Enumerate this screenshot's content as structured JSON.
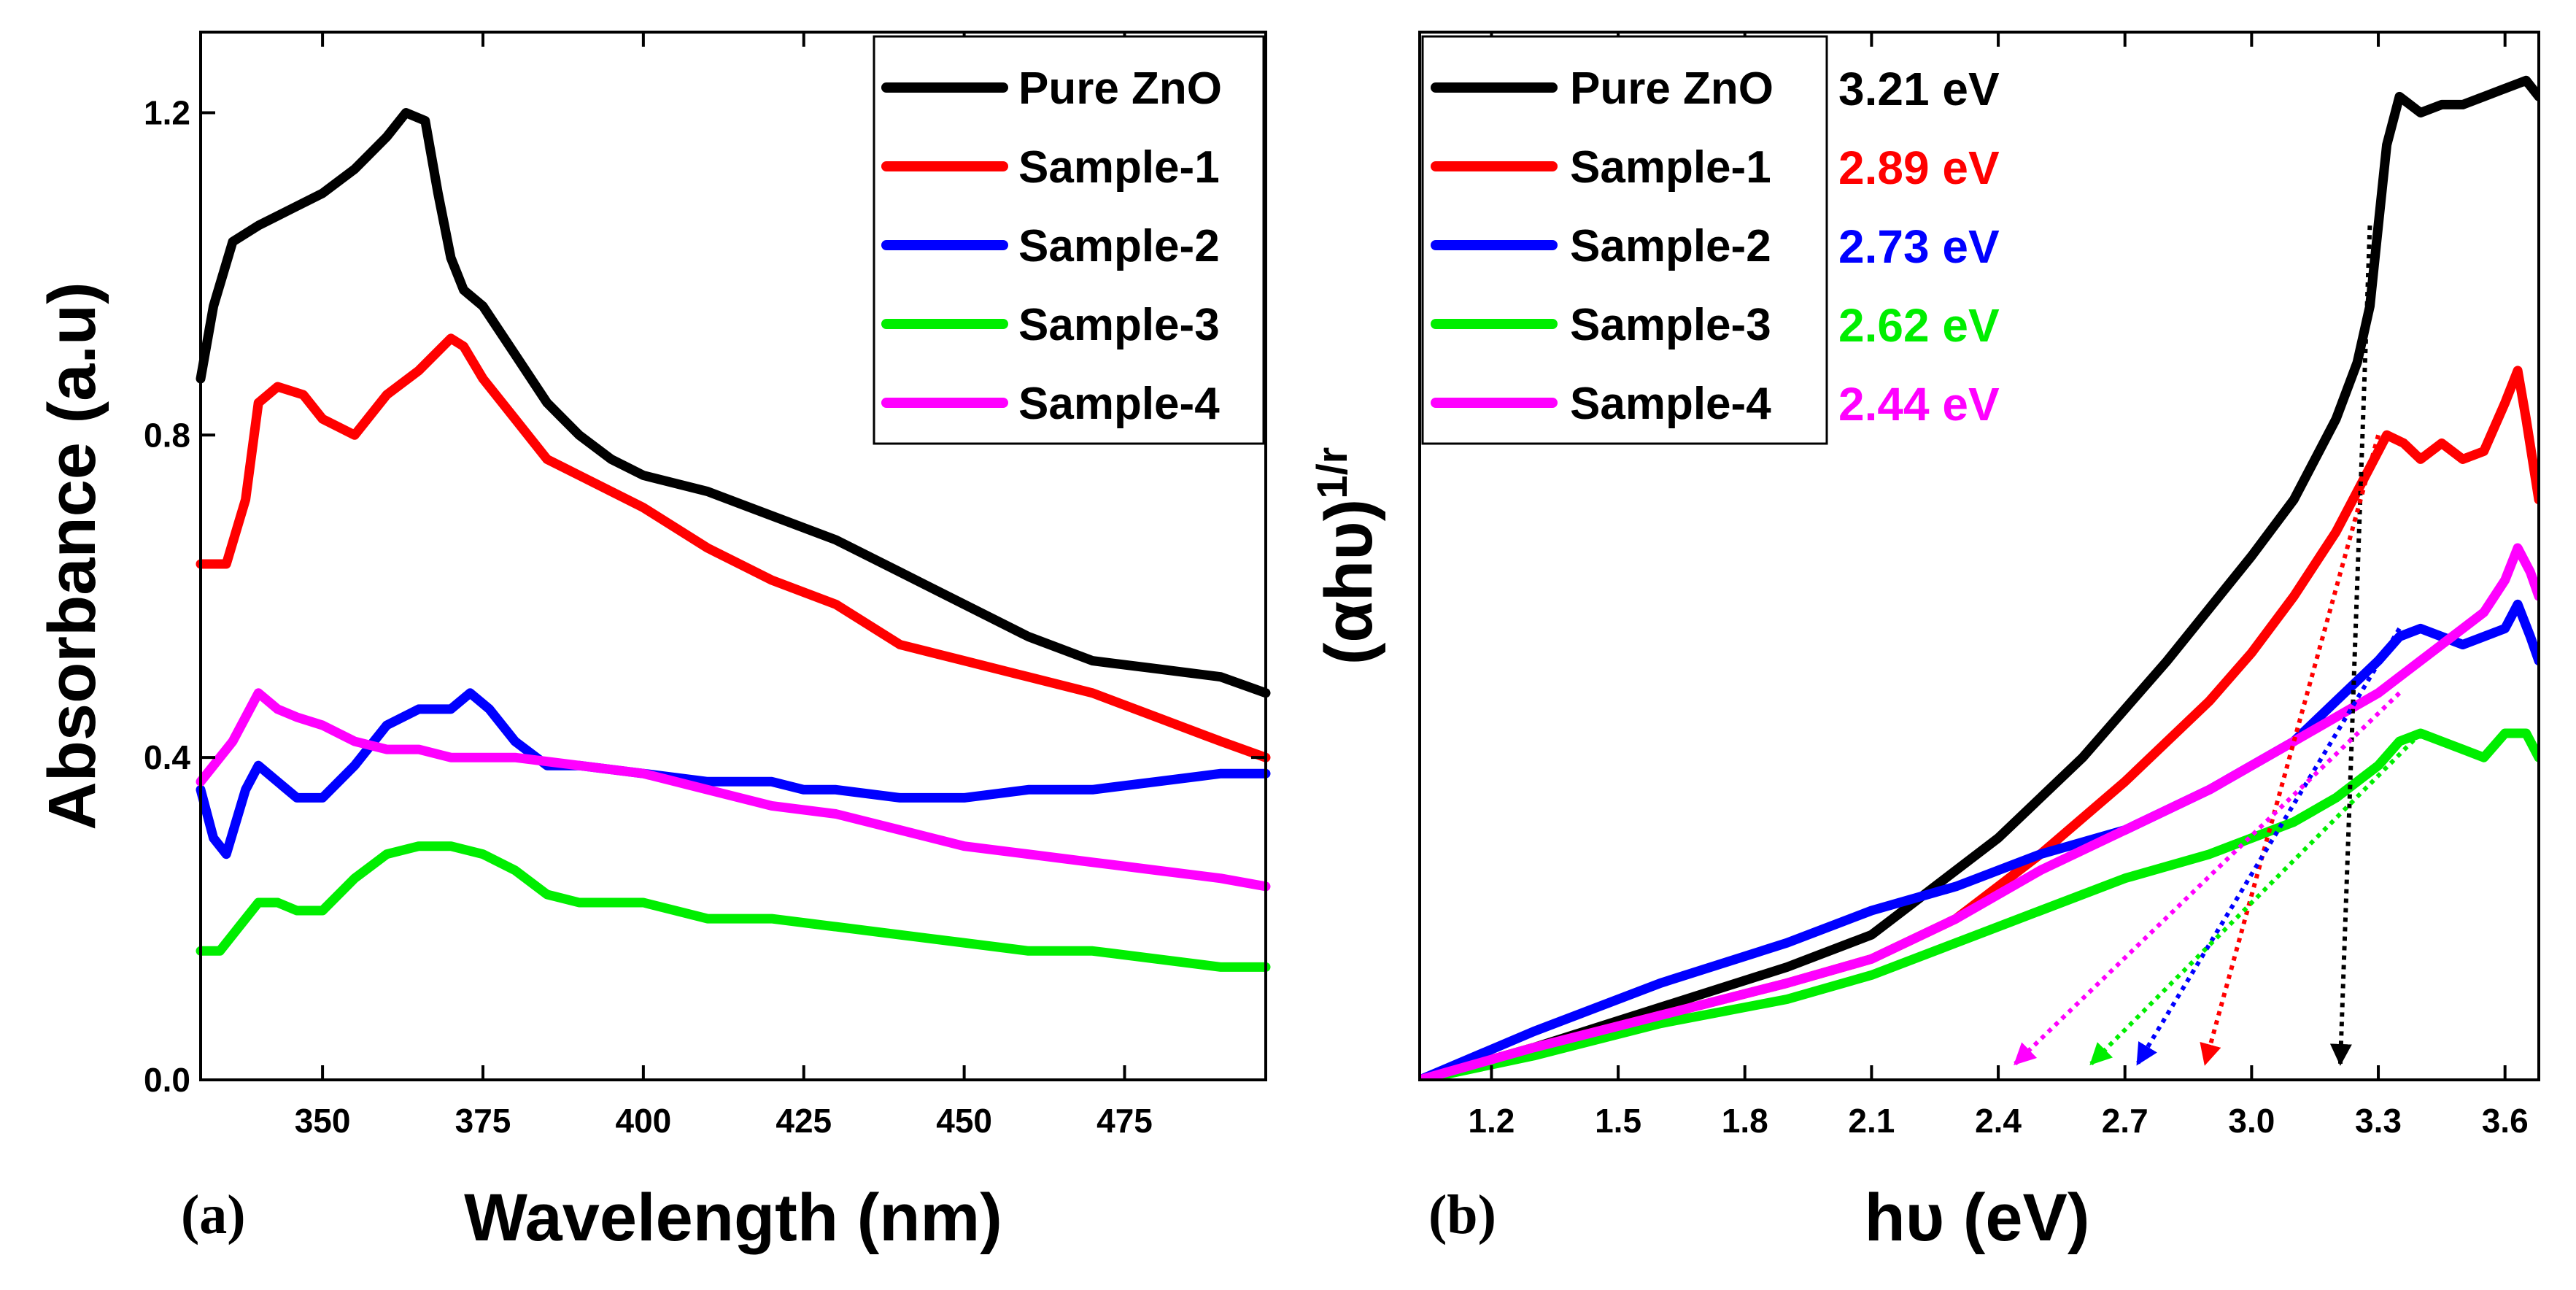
{
  "figure": {
    "panel_a_label": "(a)",
    "panel_b_label": "(b)"
  },
  "chart_data": [
    {
      "type": "line",
      "panel": "(a)",
      "title": "",
      "xlabel": "Wavelength (nm)",
      "ylabel": "Absorbance (a.u)",
      "xlim": [
        331,
        497
      ],
      "ylim": [
        0,
        1.3
      ],
      "xticks": [
        350,
        375,
        400,
        425,
        450,
        475
      ],
      "yticks": [
        0.0,
        0.4,
        0.8,
        1.2
      ],
      "xtick_labels": [
        "350",
        "375",
        "400",
        "425",
        "450",
        "475"
      ],
      "ytick_labels": [
        "0.0",
        "0.4",
        "0.8",
        "1.2"
      ],
      "legend": "top-right",
      "series": [
        {
          "name": "Pure ZnO",
          "color": "#000000",
          "x": [
            331,
            333,
            336,
            340,
            345,
            350,
            355,
            360,
            363,
            366,
            368,
            370,
            372,
            375,
            380,
            385,
            390,
            395,
            400,
            410,
            420,
            430,
            440,
            450,
            460,
            470,
            480,
            490,
            497
          ],
          "y": [
            0.87,
            0.96,
            1.04,
            1.06,
            1.08,
            1.1,
            1.13,
            1.17,
            1.2,
            1.19,
            1.1,
            1.02,
            0.98,
            0.96,
            0.9,
            0.84,
            0.8,
            0.77,
            0.75,
            0.73,
            0.7,
            0.67,
            0.63,
            0.59,
            0.55,
            0.52,
            0.51,
            0.5,
            0.48
          ]
        },
        {
          "name": "Sample-1",
          "color": "#ff0000",
          "x": [
            331,
            335,
            338,
            340,
            343,
            347,
            350,
            355,
            360,
            365,
            370,
            372,
            375,
            380,
            385,
            390,
            400,
            410,
            420,
            430,
            440,
            450,
            460,
            470,
            480,
            490,
            497
          ],
          "y": [
            0.64,
            0.64,
            0.72,
            0.84,
            0.86,
            0.85,
            0.82,
            0.8,
            0.85,
            0.88,
            0.92,
            0.91,
            0.87,
            0.82,
            0.77,
            0.75,
            0.71,
            0.66,
            0.62,
            0.59,
            0.54,
            0.52,
            0.5,
            0.48,
            0.45,
            0.42,
            0.4
          ]
        },
        {
          "name": "Sample-2",
          "color": "#0000ff",
          "x": [
            331,
            333,
            335,
            338,
            340,
            343,
            346,
            350,
            355,
            360,
            365,
            370,
            373,
            376,
            380,
            385,
            390,
            400,
            410,
            420,
            425,
            430,
            440,
            450,
            460,
            470,
            480,
            490,
            497
          ],
          "y": [
            0.36,
            0.3,
            0.28,
            0.36,
            0.39,
            0.37,
            0.35,
            0.35,
            0.39,
            0.44,
            0.46,
            0.46,
            0.48,
            0.46,
            0.42,
            0.39,
            0.39,
            0.38,
            0.37,
            0.37,
            0.36,
            0.36,
            0.35,
            0.35,
            0.36,
            0.36,
            0.37,
            0.38,
            0.38
          ]
        },
        {
          "name": "Sample-3",
          "color": "#00ee00",
          "x": [
            331,
            334,
            337,
            340,
            343,
            346,
            350,
            355,
            360,
            365,
            370,
            375,
            380,
            385,
            390,
            400,
            410,
            420,
            430,
            440,
            450,
            460,
            470,
            480,
            490,
            497
          ],
          "y": [
            0.16,
            0.16,
            0.19,
            0.22,
            0.22,
            0.21,
            0.21,
            0.25,
            0.28,
            0.29,
            0.29,
            0.28,
            0.26,
            0.23,
            0.22,
            0.22,
            0.2,
            0.2,
            0.19,
            0.18,
            0.17,
            0.16,
            0.16,
            0.15,
            0.14,
            0.14
          ]
        },
        {
          "name": "Sample-4",
          "color": "#ff00ff",
          "x": [
            331,
            334,
            336,
            338,
            340,
            343,
            346,
            350,
            355,
            360,
            365,
            370,
            375,
            380,
            390,
            400,
            410,
            420,
            430,
            440,
            450,
            460,
            470,
            480,
            490,
            497
          ],
          "y": [
            0.37,
            0.4,
            0.42,
            0.45,
            0.48,
            0.46,
            0.45,
            0.44,
            0.42,
            0.41,
            0.41,
            0.4,
            0.4,
            0.4,
            0.39,
            0.38,
            0.36,
            0.34,
            0.33,
            0.31,
            0.29,
            0.28,
            0.27,
            0.26,
            0.25,
            0.24
          ]
        }
      ]
    },
    {
      "type": "line",
      "panel": "(b)",
      "title": "",
      "xlabel": "hυ (eV)",
      "ylabel": "(αhυ)",
      "ylabel_superscript": "1/r",
      "xlim": [
        1.03,
        3.68
      ],
      "ylim": [
        0,
        1.3
      ],
      "xticks": [
        1.2,
        1.5,
        1.8,
        2.1,
        2.4,
        2.7,
        3.0,
        3.3,
        3.6
      ],
      "xtick_labels": [
        "1.2",
        "1.5",
        "1.8",
        "2.1",
        "2.4",
        "2.7",
        "3.0",
        "3.3",
        "3.6"
      ],
      "yticks": [],
      "legend": "top-left",
      "series": [
        {
          "name": "Pure ZnO",
          "color": "#000000",
          "band_gap": "3.21 eV",
          "band_gap_value": 3.21,
          "tangent_from": [
            3.28,
            1.06
          ],
          "x": [
            1.03,
            1.3,
            1.6,
            1.9,
            2.1,
            2.2,
            2.4,
            2.6,
            2.8,
            3.0,
            3.1,
            3.2,
            3.25,
            3.28,
            3.3,
            3.32,
            3.35,
            3.4,
            3.45,
            3.5,
            3.55,
            3.6,
            3.65,
            3.68
          ],
          "y": [
            0.0,
            0.04,
            0.09,
            0.14,
            0.18,
            0.22,
            0.3,
            0.4,
            0.52,
            0.65,
            0.72,
            0.82,
            0.89,
            0.96,
            1.06,
            1.16,
            1.22,
            1.2,
            1.21,
            1.21,
            1.22,
            1.23,
            1.24,
            1.22
          ]
        },
        {
          "name": "Sample-1",
          "color": "#ff0000",
          "band_gap": "2.89 eV",
          "band_gap_value": 2.89,
          "tangent_from": [
            3.3,
            0.8
          ],
          "x": [
            1.03,
            1.3,
            1.6,
            1.9,
            2.1,
            2.3,
            2.5,
            2.7,
            2.9,
            3.0,
            3.1,
            3.2,
            3.28,
            3.32,
            3.36,
            3.4,
            3.45,
            3.5,
            3.55,
            3.6,
            3.63,
            3.65,
            3.68
          ],
          "y": [
            0.0,
            0.04,
            0.08,
            0.12,
            0.15,
            0.2,
            0.28,
            0.37,
            0.47,
            0.53,
            0.6,
            0.68,
            0.76,
            0.8,
            0.79,
            0.77,
            0.79,
            0.77,
            0.78,
            0.84,
            0.88,
            0.82,
            0.72
          ]
        },
        {
          "name": "Sample-2",
          "color": "#0000ff",
          "band_gap": "2.73 eV",
          "band_gap_value": 2.73,
          "tangent_from": [
            3.35,
            0.56
          ],
          "x": [
            1.03,
            1.3,
            1.6,
            1.9,
            2.1,
            2.3,
            2.5,
            2.7,
            2.9,
            3.1,
            3.2,
            3.3,
            3.35,
            3.4,
            3.45,
            3.5,
            3.55,
            3.6,
            3.63,
            3.66,
            3.68
          ],
          "y": [
            0.0,
            0.06,
            0.12,
            0.17,
            0.21,
            0.24,
            0.28,
            0.31,
            0.36,
            0.42,
            0.47,
            0.52,
            0.55,
            0.56,
            0.55,
            0.54,
            0.55,
            0.56,
            0.59,
            0.55,
            0.52
          ]
        },
        {
          "name": "Sample-3",
          "color": "#00ee00",
          "band_gap": "2.62 eV",
          "band_gap_value": 2.62,
          "tangent_from": [
            3.4,
            0.43
          ],
          "x": [
            1.03,
            1.3,
            1.6,
            1.9,
            2.1,
            2.3,
            2.5,
            2.7,
            2.9,
            3.1,
            3.2,
            3.3,
            3.35,
            3.4,
            3.45,
            3.5,
            3.55,
            3.6,
            3.65,
            3.68
          ],
          "y": [
            0.0,
            0.03,
            0.07,
            0.1,
            0.13,
            0.17,
            0.21,
            0.25,
            0.28,
            0.32,
            0.35,
            0.39,
            0.42,
            0.43,
            0.42,
            0.41,
            0.4,
            0.43,
            0.43,
            0.4
          ]
        },
        {
          "name": "Sample-4",
          "color": "#ff00ff",
          "band_gap": "2.44 eV",
          "band_gap_value": 2.44,
          "tangent_from": [
            3.35,
            0.48
          ],
          "x": [
            1.03,
            1.3,
            1.6,
            1.9,
            2.1,
            2.3,
            2.5,
            2.7,
            2.9,
            3.1,
            3.2,
            3.3,
            3.4,
            3.5,
            3.55,
            3.6,
            3.63,
            3.66,
            3.68
          ],
          "y": [
            0.0,
            0.04,
            0.08,
            0.12,
            0.15,
            0.2,
            0.26,
            0.31,
            0.36,
            0.42,
            0.45,
            0.48,
            0.52,
            0.56,
            0.58,
            0.62,
            0.66,
            0.63,
            0.6
          ]
        }
      ]
    }
  ]
}
